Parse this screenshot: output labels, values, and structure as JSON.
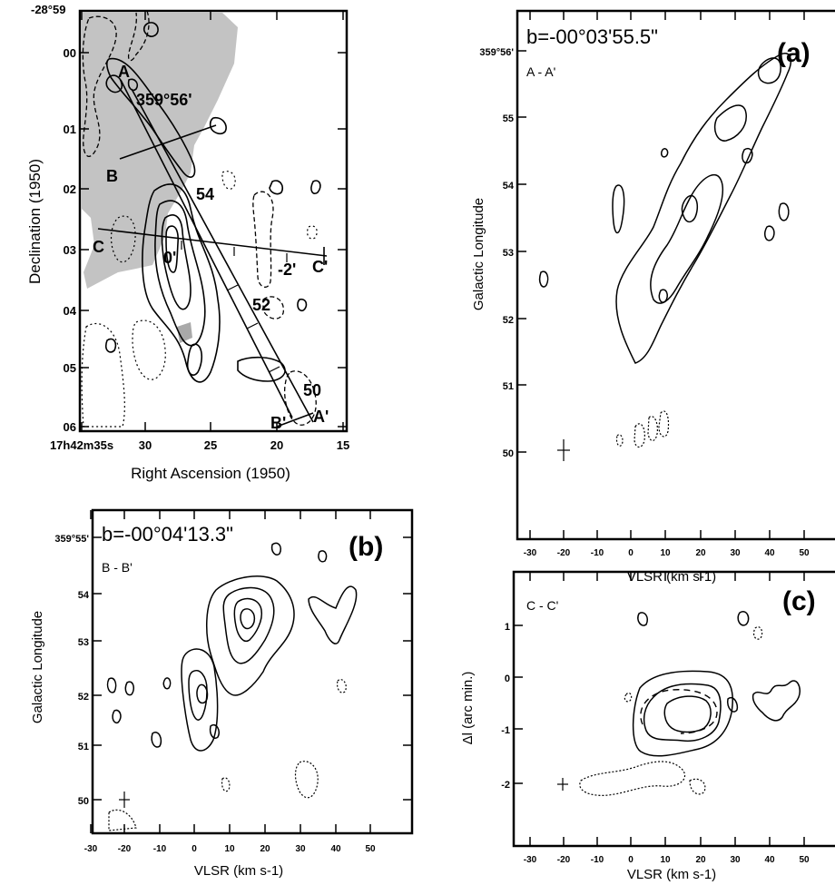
{
  "chart_data": [
    {
      "type": "contour-map",
      "ylabel": "Declination (1950)",
      "xlabel": "Right Ascension (1950)",
      "y_top_label": "-28°59",
      "y_ticks": [
        "00",
        "01",
        "02",
        "03",
        "04",
        "05",
        "06"
      ],
      "x_ticks": [
        "17h42m35s",
        "30",
        "25",
        "20",
        "15"
      ],
      "cuts": [
        {
          "start": "A",
          "end": "A'"
        },
        {
          "start": "B",
          "end": "B'"
        },
        {
          "start": "C",
          "end": "C'"
        }
      ],
      "annotations": [
        "359°56'",
        "54",
        "0'",
        "-2'",
        "52",
        "50"
      ]
    },
    {
      "type": "contour",
      "panel": "(a)",
      "title": "b=-00°03'55.5\"",
      "cut": "A - A'",
      "ylabel": "Galactic Longitude",
      "xlabel": "VLSR (km s-1)",
      "y_ticks": [
        "359°56'",
        "55",
        "54",
        "53",
        "52",
        "51",
        "50"
      ],
      "x_ticks": [
        "-30",
        "-20",
        "-10",
        "0",
        "10",
        "20",
        "30",
        "40",
        "50"
      ],
      "xlim": [
        -33,
        60
      ],
      "ylim": [
        49.0,
        56.5
      ]
    },
    {
      "type": "contour",
      "panel": "(b)",
      "title": "b=-00°04'13.3\"",
      "cut": "B - B'",
      "ylabel": "Galactic Longitude",
      "xlabel": "VLSR (km s-1)",
      "y_ticks": [
        "359°55'",
        "54",
        "53",
        "52",
        "51",
        "50"
      ],
      "x_ticks": [
        "-30",
        "-20",
        "-10",
        "0",
        "10",
        "20",
        "30",
        "40",
        "50"
      ],
      "xlim": [
        -33,
        60
      ],
      "ylim": [
        49.2,
        55.5
      ]
    },
    {
      "type": "contour",
      "panel": "(c)",
      "cut": "C - C'",
      "ylabel": "Δl (arc min.)",
      "xlabel": "VLSR (km s-1)",
      "y_ticks": [
        "1",
        "0",
        "-1",
        "-2"
      ],
      "x_ticks": [
        "-30",
        "-20",
        "-10",
        "0",
        "10",
        "20",
        "30",
        "40",
        "50"
      ],
      "xlim": [
        -33,
        60
      ],
      "ylim": [
        -3.2,
        1.8
      ]
    }
  ]
}
